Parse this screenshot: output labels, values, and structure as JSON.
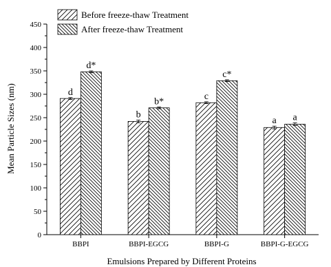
{
  "chart_data": {
    "type": "bar",
    "categories": [
      "BBPI",
      "BBPI-EGCG",
      "BBPI-G",
      "BBPI-G-EGCG"
    ],
    "series": [
      {
        "name": "Before freeze-thaw Treatment",
        "values": [
          291,
          242,
          282,
          229
        ],
        "errors": [
          2,
          3,
          2,
          3
        ],
        "labels": [
          "d",
          "b",
          "c",
          "a"
        ],
        "hatch": "forward"
      },
      {
        "name": "After freeze-thaw Treatment",
        "values": [
          348,
          271,
          329,
          236
        ],
        "errors": [
          2,
          2,
          2,
          3
        ],
        "labels": [
          "d*",
          "b*",
          "c*",
          "a"
        ],
        "hatch": "backward"
      }
    ],
    "xlabel": "Emulsions Prepared by Different Proteins",
    "ylabel": "Mean Particle Sizes (nm)",
    "ylim": [
      0,
      450
    ],
    "yticks": [
      0,
      50,
      100,
      150,
      200,
      250,
      300,
      350,
      400,
      450
    ],
    "grid": false,
    "legend_position": "top-left"
  }
}
